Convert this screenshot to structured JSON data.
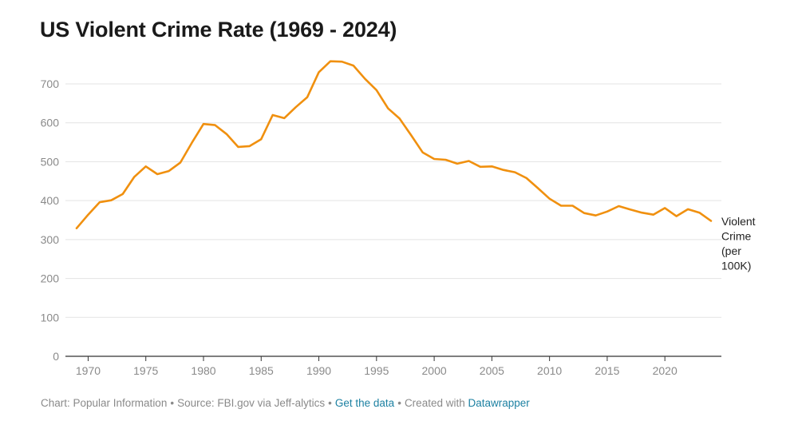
{
  "chart_data": {
    "type": "line",
    "title": "US Violent Crime Rate (1969 - 2024)",
    "xlabel": "",
    "ylabel": "",
    "xlim": [
      1969,
      2024
    ],
    "ylim": [
      0,
      750
    ],
    "yticks": [
      0,
      100,
      200,
      300,
      400,
      500,
      600,
      700
    ],
    "xticks": [
      1970,
      1975,
      1980,
      1985,
      1990,
      1995,
      2000,
      2005,
      2010,
      2015,
      2020
    ],
    "color": "#f0900f",
    "series": [
      {
        "name": "Violent Crime (per 100K)",
        "label_lines": [
          "Violent",
          "Crime",
          "(per",
          "100K)"
        ],
        "x": [
          1969,
          1970,
          1971,
          1972,
          1973,
          1974,
          1975,
          1976,
          1977,
          1978,
          1979,
          1980,
          1981,
          1982,
          1983,
          1984,
          1985,
          1986,
          1987,
          1988,
          1989,
          1990,
          1991,
          1992,
          1993,
          1994,
          1995,
          1996,
          1997,
          1998,
          1999,
          2000,
          2001,
          2002,
          2003,
          2004,
          2005,
          2006,
          2007,
          2008,
          2009,
          2010,
          2011,
          2012,
          2013,
          2014,
          2015,
          2016,
          2017,
          2018,
          2019,
          2020,
          2021,
          2022,
          2023,
          2024
        ],
        "values": [
          329,
          364,
          396,
          401,
          417,
          461,
          488,
          468,
          476,
          498,
          549,
          597,
          594,
          571,
          538,
          540,
          558,
          620,
          612,
          640,
          666,
          730,
          758,
          757,
          747,
          713,
          684,
          637,
          611,
          568,
          524,
          507,
          505,
          495,
          502,
          487,
          488,
          479,
          473,
          458,
          432,
          405,
          387,
          387,
          368,
          362,
          372,
          386,
          377,
          369,
          364,
          381,
          360,
          378,
          369,
          348
        ]
      }
    ]
  },
  "footer": {
    "chart_credit": "Chart: Popular Information",
    "source": "Source: FBI.gov via Jeff-alytics",
    "get_data": "Get the data",
    "created_with": "Created with",
    "datawrapper": "Datawrapper",
    "separator": "•"
  }
}
